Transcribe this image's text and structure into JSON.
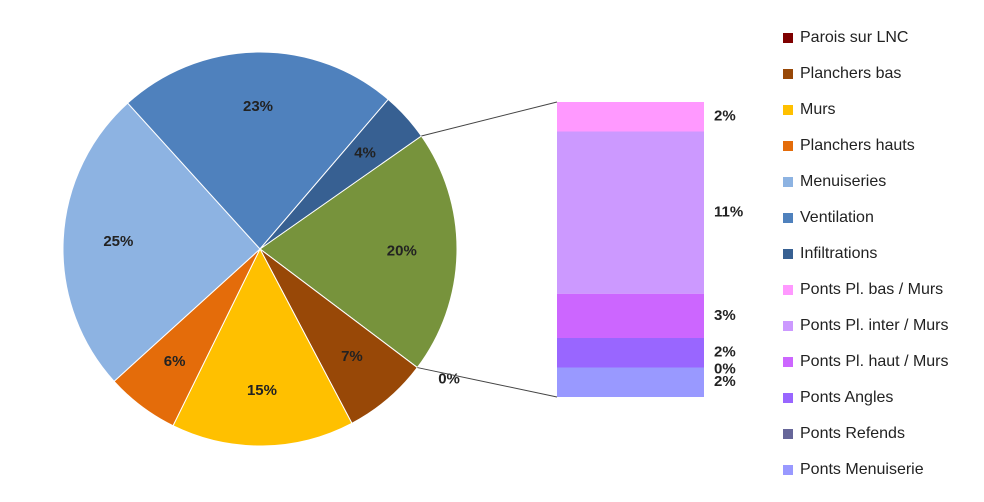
{
  "chart_data": {
    "type": "pie-of-bar",
    "categories": [
      "Parois sur LNC",
      "Planchers bas",
      "Murs",
      "Planchers hauts",
      "Menuiseries",
      "Ventilation",
      "Infiltrations"
    ],
    "values": [
      0,
      7,
      15,
      6,
      25,
      23,
      4
    ],
    "value_labels": [
      "0%",
      "7%",
      "15%",
      "6%",
      "25%",
      "23%",
      "4%"
    ],
    "colors": [
      "#7f0000",
      "#984807",
      "#ffc000",
      "#e46c0a",
      "#8db3e2",
      "#4f81bd",
      "#376092"
    ],
    "other_value": 20,
    "other_value_label": "20%",
    "other_color": "#77933c",
    "bar": {
      "categories": [
        "Ponts Pl. bas / Murs",
        "Ponts Pl. inter / Murs",
        "Ponts Pl. haut / Murs",
        "Ponts Angles",
        "Ponts Refends",
        "Ponts Menuiserie"
      ],
      "values": [
        2,
        11,
        3,
        2,
        0,
        2
      ],
      "value_labels": [
        "2%",
        "11%",
        "3%",
        "2%",
        "0%",
        "2%"
      ],
      "colors": [
        "#ff99ff",
        "#cc99ff",
        "#cc66ff",
        "#9966ff",
        "#666699",
        "#9999ff"
      ]
    }
  }
}
